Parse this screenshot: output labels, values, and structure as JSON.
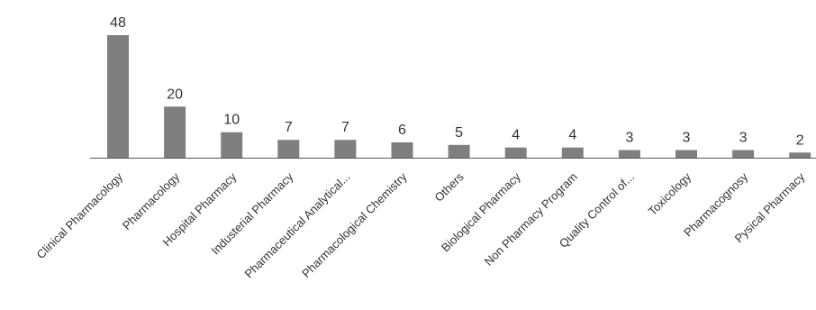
{
  "chart_data": {
    "type": "bar",
    "title": "",
    "xlabel": "",
    "ylabel": "",
    "grid": false,
    "legend": "none",
    "bar_color": "#7f7f7f",
    "ylim": [
      0,
      48
    ],
    "categories": [
      "Clinical Pharmacology",
      "Pharmacology",
      "Hospital Pharmacy",
      "Industerial Pharmacy",
      "Pharmaceutical Analytical...",
      "Pharmacological Chemistry",
      "Others",
      "Biological Pharmacy",
      "Non Pharmacy Program",
      "Quality Control of...",
      "Toxicology",
      "Pharmacognosy",
      "Pysical Pharmacy"
    ],
    "values": [
      48,
      20,
      10,
      7,
      7,
      6,
      5,
      4,
      4,
      3,
      3,
      3,
      2
    ]
  }
}
